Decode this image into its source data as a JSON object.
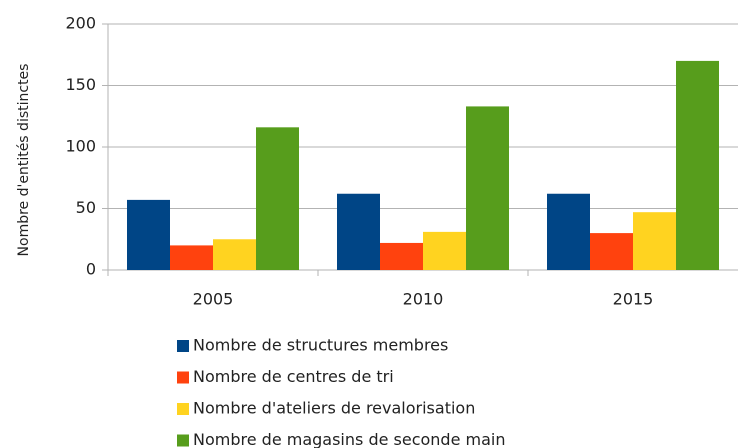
{
  "chart_data": {
    "type": "bar",
    "y_label": "Nombre d'entités distinctes",
    "categories": [
      "2005",
      "2010",
      "2015"
    ],
    "series": [
      {
        "name": "Nombre de structures membres",
        "color": "#004586",
        "values": [
          57,
          62,
          62
        ]
      },
      {
        "name": "Nombre de centres de tri",
        "color": "#ff420e",
        "values": [
          20,
          22,
          30
        ]
      },
      {
        "name": "Nombre d'ateliers de revalorisation",
        "color": "#ffd320",
        "values": [
          25,
          31,
          47
        ]
      },
      {
        "name": "Nombre de magasins de seconde main",
        "color": "#579d1c",
        "values": [
          116,
          133,
          170
        ]
      }
    ],
    "ylim": [
      0,
      200
    ],
    "yticks": [
      0,
      50,
      100,
      150,
      200
    ],
    "grid": true,
    "legend": "bottom"
  }
}
